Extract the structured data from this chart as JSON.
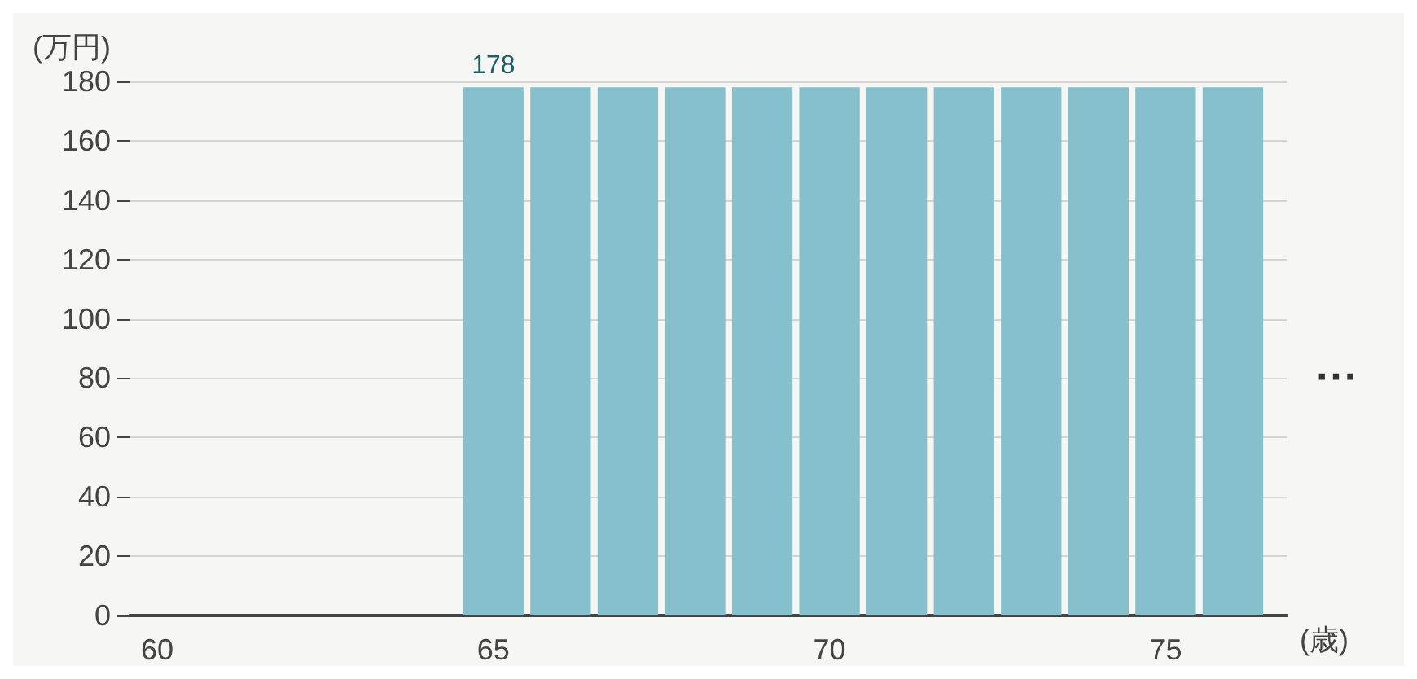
{
  "chart_data": {
    "type": "bar",
    "ylabel": "(万円)",
    "xlabel": "(歳)",
    "x": [
      65,
      66,
      67,
      68,
      69,
      70,
      71,
      72,
      73,
      74,
      75,
      76
    ],
    "values": [
      178,
      178,
      178,
      178,
      178,
      178,
      178,
      178,
      178,
      178,
      178,
      178
    ],
    "value_labels": [
      "178",
      null,
      null,
      null,
      null,
      null,
      null,
      null,
      null,
      null,
      null,
      null
    ],
    "color": "#86c0cc",
    "xlim": [
      59.6,
      76.8
    ],
    "xticks": [
      60,
      65,
      70,
      75
    ],
    "ylim": [
      0,
      180
    ],
    "yticks": [
      0,
      20,
      40,
      60,
      80,
      100,
      120,
      140,
      160,
      180
    ],
    "grid": "y",
    "annotations": [
      "···"
    ]
  }
}
